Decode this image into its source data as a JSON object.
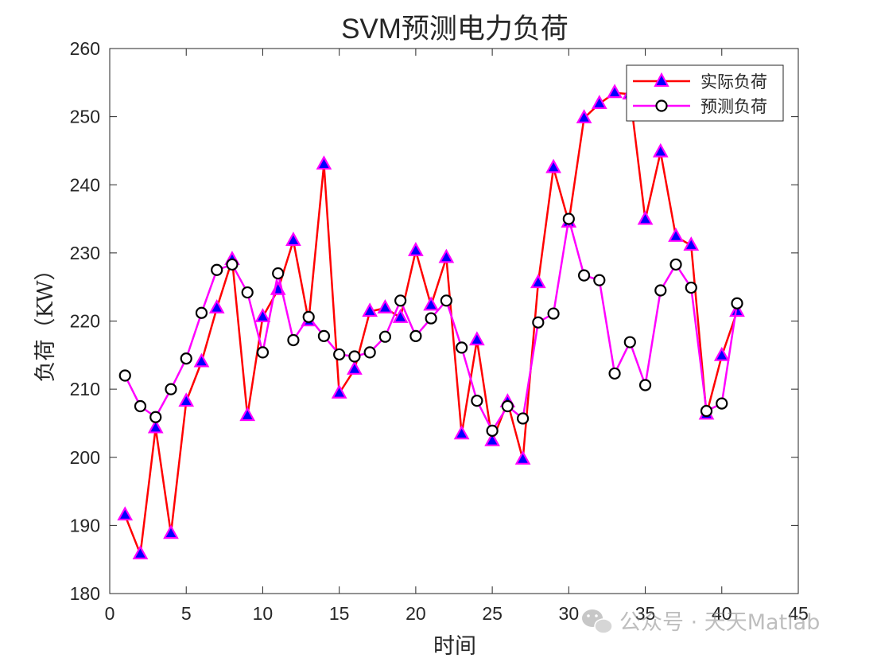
{
  "chart_data": {
    "type": "line",
    "title": "SVM预测电力负荷",
    "xlabel": "时间",
    "ylabel": "负荷（KW）",
    "xlim": [
      0,
      45
    ],
    "ylim": [
      180,
      260
    ],
    "xticks": [
      0,
      5,
      10,
      15,
      20,
      25,
      30,
      35,
      40,
      45
    ],
    "yticks": [
      180,
      190,
      200,
      210,
      220,
      230,
      240,
      250,
      260
    ],
    "grid": false,
    "legend_position": "top-right",
    "x": [
      1,
      2,
      3,
      4,
      5,
      6,
      7,
      8,
      9,
      10,
      11,
      12,
      13,
      14,
      15,
      16,
      17,
      18,
      19,
      20,
      21,
      22,
      23,
      24,
      25,
      26,
      27,
      28,
      29,
      30,
      31,
      32,
      33,
      34,
      35,
      36,
      37,
      38,
      39,
      40,
      41
    ],
    "series": [
      {
        "name": "实际负荷",
        "color": "#ff0000",
        "marker": "triangle",
        "marker_edge": "#ff00ff",
        "marker_fill": "#0000ff",
        "values": [
          191.5,
          185.8,
          204.3,
          188.8,
          208.2,
          214.0,
          221.9,
          229.0,
          206.1,
          220.6,
          224.6,
          231.8,
          220.0,
          243.0,
          209.4,
          212.9,
          221.4,
          221.9,
          220.5,
          230.3,
          222.3,
          229.3,
          203.4,
          217.2,
          202.4,
          208.1,
          199.7,
          225.6,
          242.5,
          234.5,
          249.8,
          251.9,
          253.5,
          253.3,
          234.9,
          244.8,
          232.4,
          231.1,
          206.3,
          214.9,
          221.4
        ]
      },
      {
        "name": "预测负荷",
        "color": "#ff00ff",
        "marker": "circle",
        "marker_edge": "#000000",
        "marker_fill": "#ffffff",
        "values": [
          212.0,
          207.5,
          205.9,
          210.0,
          214.5,
          221.2,
          227.5,
          228.3,
          224.2,
          215.4,
          227.0,
          217.2,
          220.6,
          217.8,
          215.1,
          214.8,
          215.4,
          217.7,
          223.0,
          217.8,
          220.4,
          223.0,
          216.1,
          208.3,
          203.9,
          207.5,
          205.7,
          219.8,
          221.1,
          235.0,
          226.7,
          226.0,
          212.3,
          216.9,
          210.6,
          224.5,
          228.3,
          224.9,
          206.8,
          207.9,
          222.6
        ]
      }
    ]
  },
  "watermark": {
    "text": "公众号 · 天天Matlab",
    "icon": "wechat-icon"
  }
}
